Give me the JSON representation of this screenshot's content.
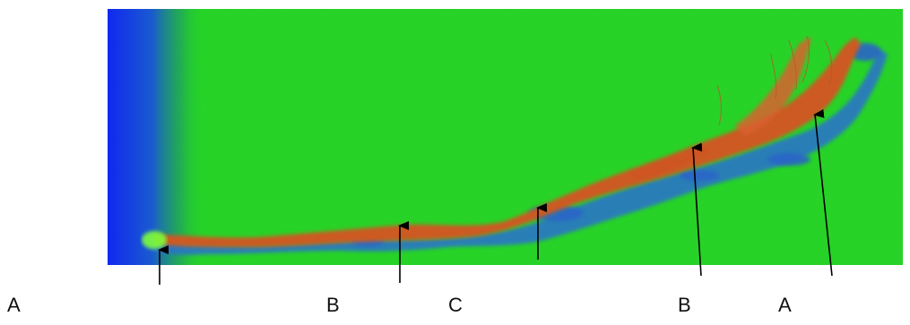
{
  "figure": {
    "colors": {
      "background_green": "#22dd22",
      "edge_blue": "#1030e0",
      "crack_red": "#d04a20",
      "shadow_blue": "#2a70c8",
      "arrow": "#000000"
    },
    "labels": [
      "A",
      "B",
      "C",
      "B",
      "A"
    ]
  }
}
